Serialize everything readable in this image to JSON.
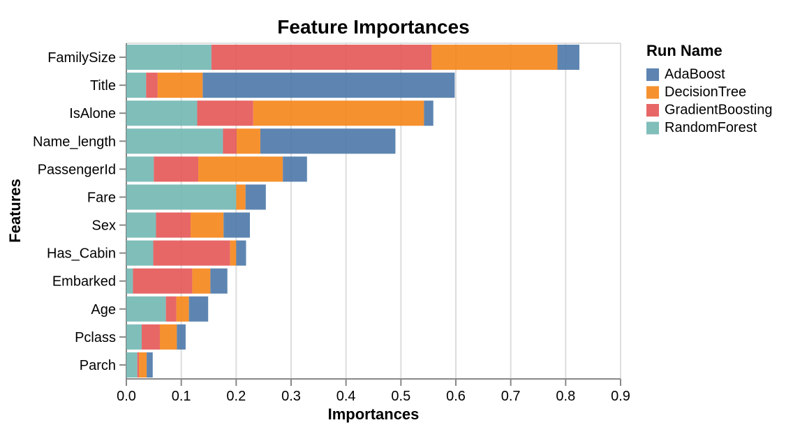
{
  "chart_data": {
    "type": "bar",
    "orientation": "horizontal",
    "stacked": true,
    "title": "Feature Importances",
    "xlabel": "Importances",
    "ylabel": "Features",
    "xlim": [
      0,
      0.9
    ],
    "xtick_labels": [
      "0.0",
      "0.1",
      "0.2",
      "0.3",
      "0.4",
      "0.5",
      "0.6",
      "0.7",
      "0.8",
      "0.9"
    ],
    "xtick_values": [
      0.0,
      0.1,
      0.2,
      0.3,
      0.4,
      0.5,
      0.6,
      0.7,
      0.8,
      0.9
    ],
    "grid": true,
    "categories": [
      "FamilySize",
      "Title",
      "IsAlone",
      "Name_length",
      "PassengerId",
      "Fare",
      "Sex",
      "Has_Cabin",
      "Embarked",
      "Age",
      "Pclass",
      "Parch"
    ],
    "series": [
      {
        "name": "RandomForest",
        "color": "#72b7b2",
        "values": [
          0.155,
          0.036,
          0.129,
          0.176,
          0.05,
          0.2,
          0.054,
          0.049,
          0.012,
          0.072,
          0.028,
          0.02
        ]
      },
      {
        "name": "GradientBoosting",
        "color": "#e45756",
        "values": [
          0.401,
          0.021,
          0.102,
          0.025,
          0.081,
          0.0,
          0.063,
          0.14,
          0.108,
          0.019,
          0.033,
          0.003
        ]
      },
      {
        "name": "DecisionTree",
        "color": "#f58518",
        "values": [
          0.229,
          0.082,
          0.311,
          0.043,
          0.154,
          0.017,
          0.06,
          0.011,
          0.033,
          0.023,
          0.031,
          0.014
        ]
      },
      {
        "name": "AdaBoost",
        "color": "#4c78a8",
        "values": [
          0.04,
          0.459,
          0.017,
          0.246,
          0.044,
          0.037,
          0.048,
          0.018,
          0.031,
          0.035,
          0.016,
          0.011
        ]
      }
    ],
    "totals": [
      0.825,
      0.598,
      0.559,
      0.49,
      0.329,
      0.254,
      0.225,
      0.218,
      0.184,
      0.149,
      0.108,
      0.048
    ],
    "legend": {
      "title": "Run Name",
      "position": "right",
      "entries": [
        "AdaBoost",
        "DecisionTree",
        "GradientBoosting",
        "RandomForest"
      ]
    },
    "style": {
      "bar_fill_opacity": 0.9,
      "grid_color": "#dddddd",
      "axis_color": "#888888",
      "text_color": "#000000",
      "background": "#ffffff"
    }
  }
}
